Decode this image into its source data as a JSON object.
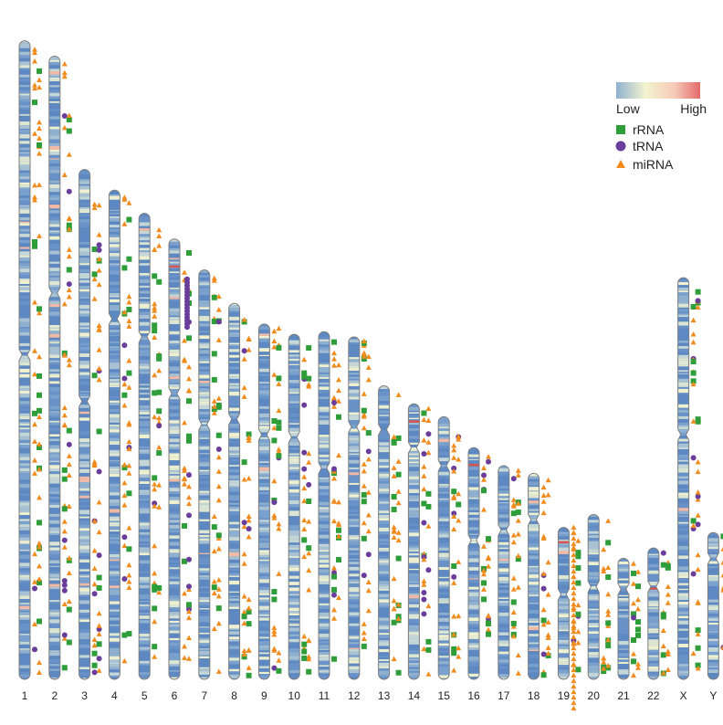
{
  "chart_data": {
    "type": "karyotype ideogram with feature annotations",
    "title": "",
    "chromosomes": [
      {
        "name": "1",
        "length": 248,
        "centromere": 122
      },
      {
        "name": "2",
        "length": 242,
        "centromere": 92
      },
      {
        "name": "3",
        "length": 198,
        "centromere": 90
      },
      {
        "name": "4",
        "length": 190,
        "centromere": 50
      },
      {
        "name": "5",
        "length": 181,
        "centromere": 48
      },
      {
        "name": "6",
        "length": 171,
        "centromere": 60
      },
      {
        "name": "7",
        "length": 159,
        "centromere": 60
      },
      {
        "name": "8",
        "length": 146,
        "centromere": 45
      },
      {
        "name": "9",
        "length": 138,
        "centromere": 43
      },
      {
        "name": "10",
        "length": 134,
        "centromere": 40
      },
      {
        "name": "11",
        "length": 135,
        "centromere": 53
      },
      {
        "name": "12",
        "length": 133,
        "centromere": 35
      },
      {
        "name": "13",
        "length": 114,
        "centromere": 17
      },
      {
        "name": "14",
        "length": 107,
        "centromere": 17
      },
      {
        "name": "15",
        "length": 102,
        "centromere": 19
      },
      {
        "name": "16",
        "length": 90,
        "centromere": 36
      },
      {
        "name": "17",
        "length": 83,
        "centromere": 25
      },
      {
        "name": "18",
        "length": 80,
        "centromere": 18
      },
      {
        "name": "19",
        "length": 59,
        "centromere": 26
      },
      {
        "name": "20",
        "length": 64,
        "centromere": 28
      },
      {
        "name": "21",
        "length": 47,
        "centromere": 12
      },
      {
        "name": "22",
        "length": 51,
        "centromere": 15
      },
      {
        "name": "X",
        "length": 156,
        "centromere": 61
      },
      {
        "name": "Y",
        "length": 57,
        "centromere": 10
      }
    ],
    "density_scale": {
      "low_label": "Low",
      "high_label": "High",
      "colors": [
        "#8fb0cf",
        "#f4f4cf",
        "#f6c9b7",
        "#e46a6a"
      ]
    },
    "legend": [
      {
        "name": "rRNA",
        "shape": "square",
        "color": "#2f9e3a"
      },
      {
        "name": "tRNA",
        "shape": "circle",
        "color": "#6a3d9a"
      },
      {
        "name": "miRNA",
        "shape": "triangle",
        "color": "#f08c1e"
      }
    ],
    "legend_position": "top-right"
  }
}
